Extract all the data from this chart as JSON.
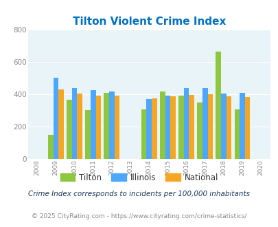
{
  "title": "Tilton Violent Crime Index",
  "years": [
    2009,
    2010,
    2011,
    2012,
    2014,
    2015,
    2016,
    2017,
    2018,
    2019
  ],
  "tilton": [
    150,
    365,
    300,
    410,
    305,
    415,
    390,
    350,
    665,
    305
  ],
  "illinois": [
    500,
    437,
    427,
    415,
    370,
    390,
    437,
    438,
    405,
    407
  ],
  "national": [
    428,
    402,
    390,
    390,
    375,
    385,
    397,
    400,
    385,
    383
  ],
  "tilton_color": "#8dc63f",
  "illinois_color": "#4da6ff",
  "national_color": "#f5a623",
  "bg_color": "#e8f4f8",
  "title_color": "#0070c0",
  "tick_color": "#888888",
  "ylim": [
    0,
    800
  ],
  "yticks": [
    0,
    200,
    400,
    600,
    800
  ],
  "xlim": [
    2007.5,
    2020.5
  ],
  "bar_width": 0.28,
  "subtitle": "Crime Index corresponds to incidents per 100,000 inhabitants",
  "footer": "© 2025 CityRating.com - https://www.cityrating.com/crime-statistics/",
  "legend_labels": [
    "Tilton",
    "Illinois",
    "National"
  ]
}
